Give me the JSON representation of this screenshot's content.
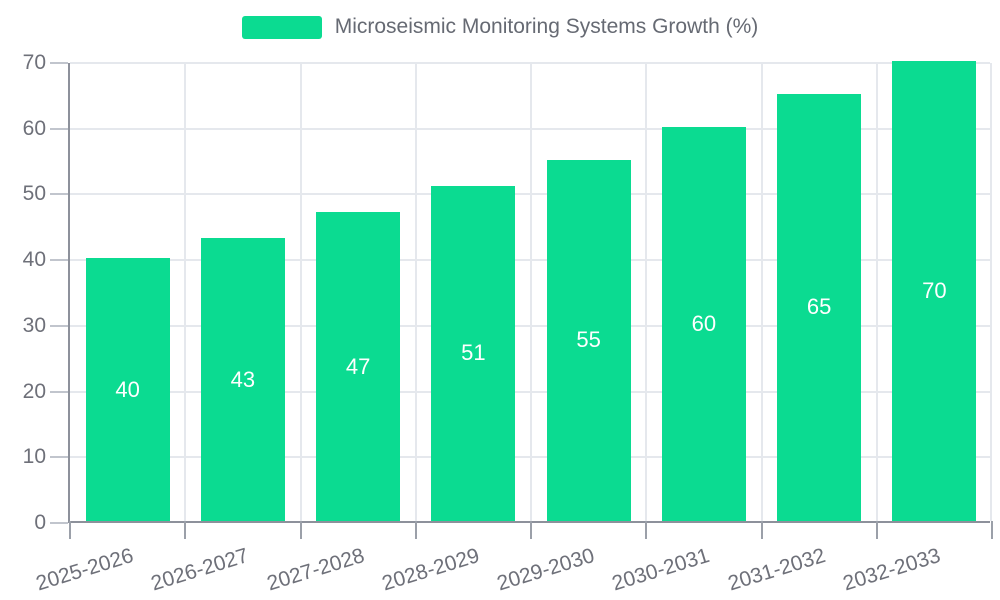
{
  "chart_data": {
    "type": "bar",
    "title": "Microseismic Monitoring Systems Growth (%)",
    "categories": [
      "2025-2026",
      "2026-2027",
      "2027-2028",
      "2028-2029",
      "2029-2030",
      "2030-2031",
      "2031-2032",
      "2032-2033"
    ],
    "series": [
      {
        "name": "Microseismic Monitoring Systems Growth (%)",
        "values": [
          40,
          43,
          47,
          51,
          55,
          60,
          65,
          70
        ],
        "color": "#0bdb91"
      }
    ],
    "xlabel": "",
    "ylabel": "",
    "ylim": [
      0,
      70
    ],
    "yticks": [
      0,
      10,
      20,
      30,
      40,
      50,
      60,
      70
    ],
    "grid": true,
    "legend_position": "top-center",
    "value_labels": "inside-center",
    "colors": {
      "bar": "#0bdb91",
      "value_label": "#ffffff",
      "axis_label": "#6e7079",
      "legend_text": "#666a73",
      "gridline": "#e5e8ed",
      "axis_line": "#8d919b",
      "background": "#ffffff"
    }
  }
}
